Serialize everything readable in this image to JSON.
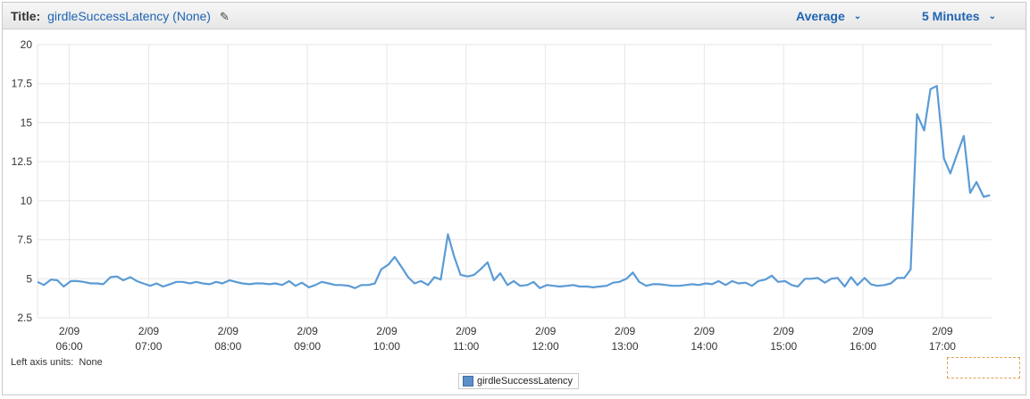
{
  "header": {
    "title_label": "Title:",
    "title_value": "girdleSuccessLatency (None)",
    "statistic": "Average",
    "period": "5 Minutes"
  },
  "icons": {
    "edit": "pencil-icon",
    "dropdown": "chevron-down-icon"
  },
  "footer": {
    "units_label": "Left axis units:",
    "units_value": "None"
  },
  "colors": {
    "series": "#5b9bd5",
    "grid": "#e6e6e6",
    "accent": "#1f64b4"
  },
  "chart_data": {
    "type": "line",
    "title": "girdleSuccessLatency (None)",
    "ylim": [
      2.5,
      20
    ],
    "yticks": [
      "2.5",
      "5",
      "7.5",
      "10",
      "12.5",
      "15",
      "17.5",
      "20"
    ],
    "xlim": [
      5.6,
      17.62
    ],
    "xticks": [
      {
        "date": "2/09",
        "time": "06:00",
        "x": 6
      },
      {
        "date": "2/09",
        "time": "07:00",
        "x": 7
      },
      {
        "date": "2/09",
        "time": "08:00",
        "x": 8
      },
      {
        "date": "2/09",
        "time": "09:00",
        "x": 9
      },
      {
        "date": "2/09",
        "time": "10:00",
        "x": 10
      },
      {
        "date": "2/09",
        "time": "11:00",
        "x": 11
      },
      {
        "date": "2/09",
        "time": "12:00",
        "x": 12
      },
      {
        "date": "2/09",
        "time": "13:00",
        "x": 13
      },
      {
        "date": "2/09",
        "time": "14:00",
        "x": 14
      },
      {
        "date": "2/09",
        "time": "15:00",
        "x": 15
      },
      {
        "date": "2/09",
        "time": "16:00",
        "x": 16
      },
      {
        "date": "2/09",
        "time": "17:00",
        "x": 17
      }
    ],
    "grid": true,
    "legend_position": "bottom-center",
    "series": [
      {
        "name": "girdleSuccessLatency",
        "x": [
          5.6,
          5.68,
          5.77,
          5.85,
          5.93,
          6.02,
          6.1,
          6.18,
          6.27,
          6.35,
          6.43,
          6.52,
          6.6,
          6.68,
          6.77,
          6.85,
          6.93,
          7.02,
          7.1,
          7.18,
          7.27,
          7.35,
          7.43,
          7.52,
          7.6,
          7.68,
          7.77,
          7.85,
          7.93,
          8.02,
          8.1,
          8.18,
          8.27,
          8.35,
          8.43,
          8.52,
          8.6,
          8.68,
          8.77,
          8.85,
          8.93,
          9.02,
          9.1,
          9.18,
          9.27,
          9.35,
          9.43,
          9.52,
          9.6,
          9.68,
          9.77,
          9.85,
          9.93,
          10.02,
          10.1,
          10.18,
          10.27,
          10.35,
          10.43,
          10.52,
          10.6,
          10.68,
          10.77,
          10.85,
          10.93,
          11.02,
          11.1,
          11.18,
          11.27,
          11.35,
          11.43,
          11.52,
          11.6,
          11.68,
          11.77,
          11.85,
          11.93,
          12.02,
          12.1,
          12.18,
          12.27,
          12.35,
          12.43,
          12.52,
          12.6,
          12.68,
          12.77,
          12.85,
          12.93,
          13.02,
          13.1,
          13.18,
          13.27,
          13.35,
          13.43,
          13.52,
          13.6,
          13.68,
          13.77,
          13.85,
          13.93,
          14.02,
          14.1,
          14.18,
          14.27,
          14.35,
          14.43,
          14.52,
          14.6,
          14.68,
          14.77,
          14.85,
          14.93,
          15.02,
          15.1,
          15.18,
          15.27,
          15.35,
          15.43,
          15.52,
          15.6,
          15.68,
          15.77,
          15.85,
          15.93,
          16.02,
          16.1,
          16.18,
          16.27,
          16.35,
          16.43,
          16.52,
          16.6,
          16.68,
          16.77,
          16.85,
          16.93,
          17.02,
          17.1,
          17.18,
          17.27,
          17.35,
          17.43,
          17.52,
          17.6
        ],
        "y": [
          4.8,
          4.6,
          4.95,
          4.9,
          4.5,
          4.85,
          4.85,
          4.8,
          4.7,
          4.7,
          4.65,
          5.1,
          5.15,
          4.9,
          5.1,
          4.85,
          4.7,
          4.55,
          4.7,
          4.5,
          4.65,
          4.8,
          4.8,
          4.7,
          4.8,
          4.7,
          4.65,
          4.8,
          4.7,
          4.9,
          4.8,
          4.7,
          4.65,
          4.7,
          4.7,
          4.65,
          4.7,
          4.6,
          4.85,
          4.55,
          4.75,
          4.45,
          4.6,
          4.8,
          4.7,
          4.6,
          4.6,
          4.55,
          4.4,
          4.6,
          4.6,
          4.7,
          5.6,
          5.9,
          6.4,
          5.8,
          5.1,
          4.7,
          4.85,
          4.6,
          5.1,
          4.95,
          7.85,
          6.4,
          5.25,
          5.15,
          5.25,
          5.6,
          6.05,
          4.9,
          5.35,
          4.6,
          4.85,
          4.55,
          4.6,
          4.8,
          4.4,
          4.6,
          4.55,
          4.5,
          4.55,
          4.6,
          4.5,
          4.5,
          4.45,
          4.5,
          4.55,
          4.75,
          4.8,
          5.0,
          5.4,
          4.8,
          4.55,
          4.65,
          4.65,
          4.6,
          4.55,
          4.55,
          4.6,
          4.65,
          4.6,
          4.7,
          4.65,
          4.85,
          4.6,
          4.85,
          4.7,
          4.75,
          4.55,
          4.85,
          4.95,
          5.2,
          4.8,
          4.85,
          4.6,
          4.5,
          5.0,
          5.0,
          5.05,
          4.75,
          5.0,
          5.05,
          4.5,
          5.1,
          4.6,
          5.05,
          4.65,
          4.55,
          4.6,
          4.7,
          5.05,
          5.05,
          5.6,
          15.55,
          14.5,
          17.15,
          17.35,
          12.7,
          11.75,
          12.9,
          14.15,
          10.5,
          11.2,
          10.25,
          10.35
        ]
      }
    ]
  }
}
